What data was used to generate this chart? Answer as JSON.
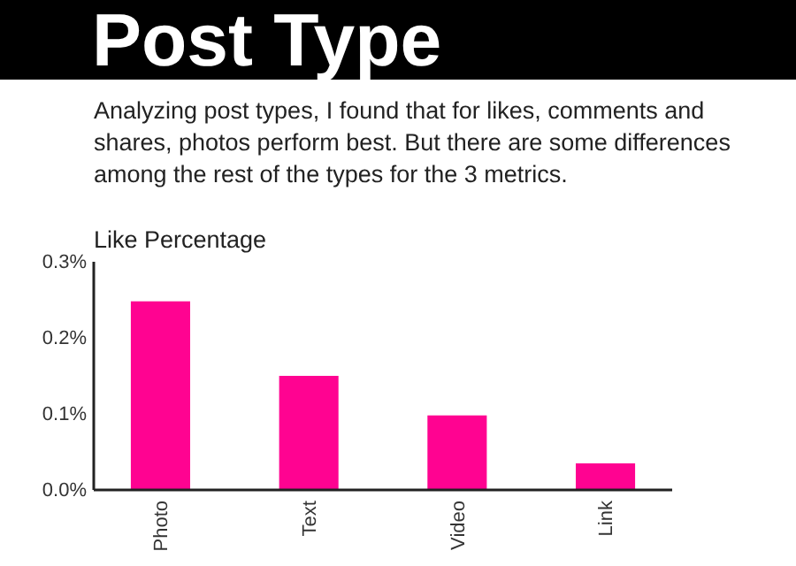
{
  "chart_data": {
    "type": "bar",
    "title": "Post Type",
    "subtitle": "Analyzing post types, I found that for likes, comments and shares, photos perform best. But there are some differences among the rest of the types for the 3 metrics.",
    "ylabel": "Like Percentage",
    "categories": [
      "Photo",
      "Text",
      "Video",
      "Link"
    ],
    "values": [
      0.248,
      0.15,
      0.098,
      0.035
    ],
    "color": "#ff0391",
    "ylim": [
      0,
      0.3
    ],
    "yticks": [
      {
        "value": 0,
        "label": "0.0%"
      },
      {
        "value": 0.1,
        "label": "0.1%"
      },
      {
        "value": 0.2,
        "label": "0.2%"
      },
      {
        "value": 0.3,
        "label": "0.3%"
      }
    ],
    "grid": false
  }
}
